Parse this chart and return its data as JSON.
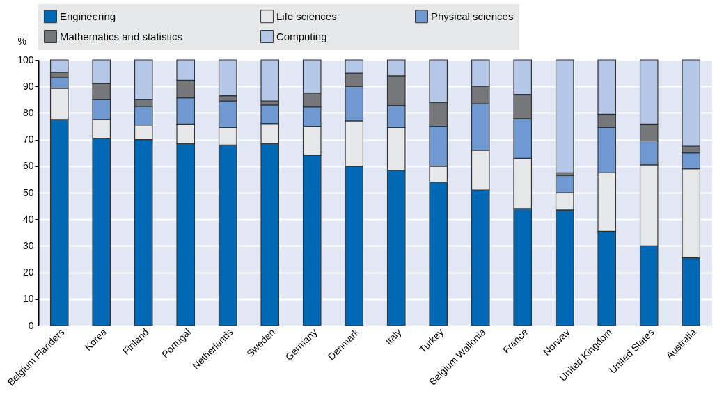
{
  "chart_data": {
    "type": "bar",
    "stacked": true,
    "ylabel": "%",
    "categories": [
      "Belgium Flanders",
      "Korea",
      "Finland",
      "Portugal",
      "Netherlands",
      "Sweden",
      "Germany",
      "Denmark",
      "Italy",
      "Turkey",
      "Belgium Wallonia",
      "France",
      "Norway",
      "United Kingdom",
      "United States",
      "Australia"
    ],
    "series": [
      {
        "name": "Engineering",
        "color": "#0068b4",
        "values": [
          77.5,
          70.5,
          70,
          68.5,
          68,
          68.5,
          64,
          60,
          58.5,
          54,
          51,
          44,
          43.5,
          35.5,
          30,
          25.5
        ]
      },
      {
        "name": "Life sciences",
        "color": "#e6e7e8",
        "values": [
          11.8,
          7,
          5.5,
          7.3,
          6.5,
          7.5,
          11,
          17,
          16,
          6,
          15,
          19,
          6.5,
          22,
          30.5,
          33.5
        ]
      },
      {
        "name": "Physical sciences",
        "color": "#7199d1",
        "values": [
          4.2,
          7.5,
          7,
          9.9,
          10,
          7,
          7.3,
          13,
          8.3,
          15,
          17.5,
          15,
          6.5,
          17,
          9,
          6
        ]
      },
      {
        "name": "Mathematics and statistics",
        "color": "#76777a",
        "values": [
          1.8,
          6,
          2.5,
          6.6,
          2,
          1.5,
          5.2,
          5,
          11.2,
          9,
          6.5,
          9,
          1,
          5,
          6.3,
          2.5
        ]
      },
      {
        "name": "Computing",
        "color": "#b4c7e7",
        "values": [
          4.7,
          9,
          15,
          7.7,
          13.5,
          15.5,
          12.5,
          5,
          6,
          16,
          10,
          13,
          42.5,
          20.5,
          24.2,
          32.5
        ]
      }
    ],
    "ylim": [
      0,
      100
    ],
    "yticks": [
      0,
      10,
      20,
      30,
      40,
      50,
      60,
      70,
      80,
      90,
      100
    ],
    "grid": true,
    "legend": "top"
  }
}
